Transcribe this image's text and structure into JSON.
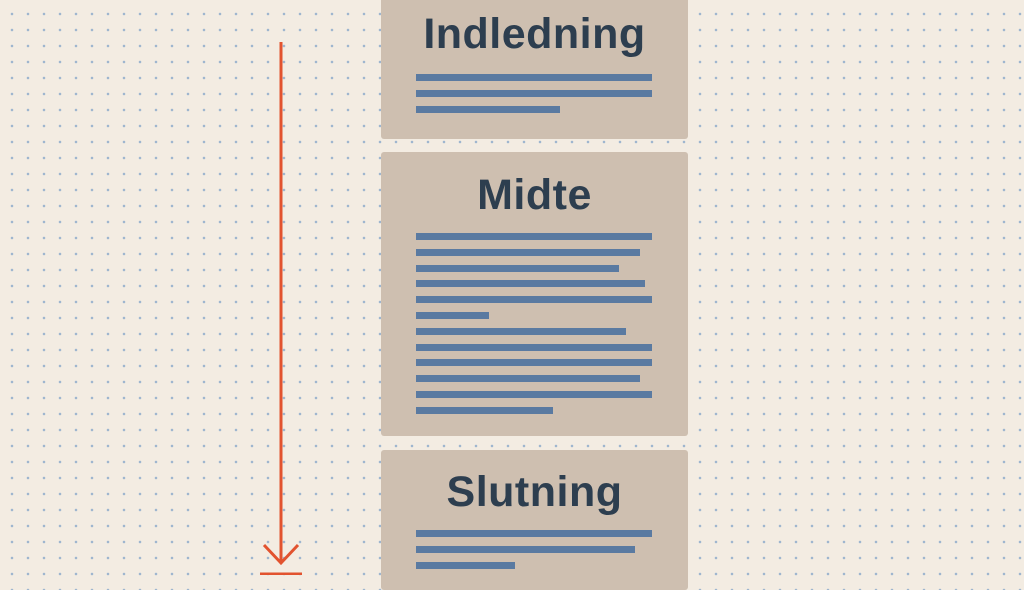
{
  "cards": [
    {
      "title": "Indledning",
      "line_widths": [
        1.0,
        1.0,
        0.61
      ]
    },
    {
      "title": "Midte",
      "line_widths": [
        1.0,
        0.95,
        0.86,
        0.97,
        1.0,
        0.31,
        0.89,
        1.0,
        1.0,
        0.95,
        1.0,
        0.58
      ]
    },
    {
      "title": "Slutning",
      "line_widths": [
        1.0,
        0.93,
        0.42
      ]
    }
  ],
  "colors": {
    "arrow": "#e2532f",
    "line": "#5a7aa1",
    "card": "#cebfb0",
    "title": "#2d3e4f",
    "background": "#f3ece2"
  }
}
